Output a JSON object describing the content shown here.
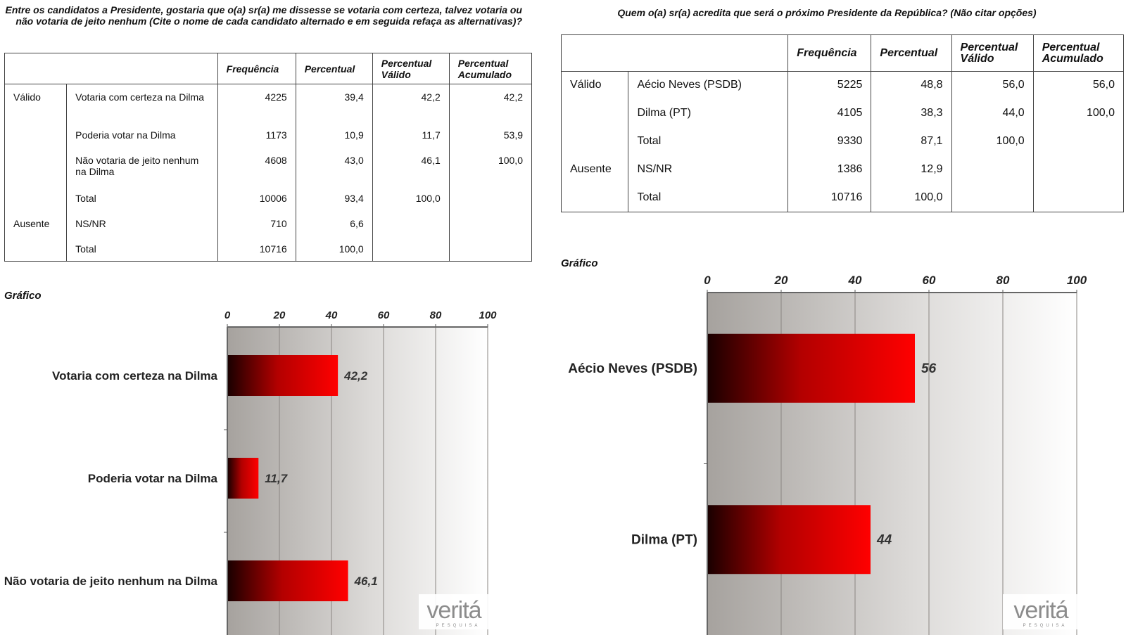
{
  "left": {
    "question": "Entre os candidatos a Presidente, gostaria que o(a) sr(a) me dissesse se votaria com certeza, talvez votaria ou não votaria de jeito nenhum (Cite o nome de cada candidato alternado e em seguida refaça as alternativas)?",
    "headers": [
      "Frequência",
      "Percentual",
      "Percentual Válido",
      "Percentual Acumulado"
    ],
    "rows": [
      {
        "group": "Válido",
        "label": "Votaria com certeza na Dilma",
        "freq": "4225",
        "pct": "39,4",
        "valid": "42,2",
        "cum": "42,2"
      },
      {
        "group": "",
        "label": "Poderia votar na Dilma",
        "freq": "1173",
        "pct": "10,9",
        "valid": "11,7",
        "cum": "53,9"
      },
      {
        "group": "",
        "label": "Não votaria de jeito nenhum na Dilma",
        "freq": "4608",
        "pct": "43,0",
        "valid": "46,1",
        "cum": "100,0"
      },
      {
        "group": "",
        "label": "Total",
        "freq": "10006",
        "pct": "93,4",
        "valid": "100,0",
        "cum": ""
      },
      {
        "group": "Ausente",
        "label": "NS/NR",
        "freq": "710",
        "pct": "6,6",
        "valid": "",
        "cum": ""
      },
      {
        "group": "",
        "label": "Total",
        "freq": "10716",
        "pct": "100,0",
        "valid": "",
        "cum": ""
      }
    ],
    "grafico_label": "Gráfico",
    "logo_text": "veritá",
    "logo_sub": "PESQUISA"
  },
  "right": {
    "question": "Quem o(a) sr(a) acredita que será o próximo Presidente da República? (Não citar opções)",
    "headers": [
      "Frequência",
      "Percentual",
      "Percentual Válido",
      "Percentual Acumulado"
    ],
    "rows": [
      {
        "group": "Válido",
        "label": "Aécio Neves (PSDB)",
        "freq": "5225",
        "pct": "48,8",
        "valid": "56,0",
        "cum": "56,0"
      },
      {
        "group": "",
        "label": "Dilma (PT)",
        "freq": "4105",
        "pct": "38,3",
        "valid": "44,0",
        "cum": "100,0"
      },
      {
        "group": "",
        "label": "Total",
        "freq": "9330",
        "pct": "87,1",
        "valid": "100,0",
        "cum": ""
      },
      {
        "group": "Ausente",
        "label": "NS/NR",
        "freq": "1386",
        "pct": "12,9",
        "valid": "",
        "cum": ""
      },
      {
        "group": "",
        "label": "Total",
        "freq": "10716",
        "pct": "100,0",
        "valid": "",
        "cum": ""
      }
    ],
    "grafico_label": "Gráfico",
    "logo_text": "veritá",
    "logo_sub": "PESQUISA"
  },
  "chart_data": [
    {
      "type": "bar",
      "orientation": "horizontal",
      "categories": [
        "Votaria com certeza na Dilma",
        "Poderia votar na Dilma",
        "Não votaria de jeito nenhum na Dilma"
      ],
      "values": [
        42.2,
        11.7,
        46.1
      ],
      "value_labels": [
        "42,2",
        "11,7",
        "46,1"
      ],
      "xlim": [
        0,
        100
      ],
      "ticks": [
        "0",
        "20",
        "40",
        "60",
        "80",
        "100"
      ],
      "bar_color": "#ff0000",
      "bar_dark": "#1a0000"
    },
    {
      "type": "bar",
      "orientation": "horizontal",
      "categories": [
        "Aécio Neves (PSDB)",
        "Dilma (PT)"
      ],
      "values": [
        56,
        44
      ],
      "value_labels": [
        "56",
        "44"
      ],
      "xlim": [
        0,
        100
      ],
      "ticks": [
        "0",
        "20",
        "40",
        "60",
        "80",
        "100"
      ],
      "bar_color": "#ff0000",
      "bar_dark": "#1a0000"
    }
  ]
}
